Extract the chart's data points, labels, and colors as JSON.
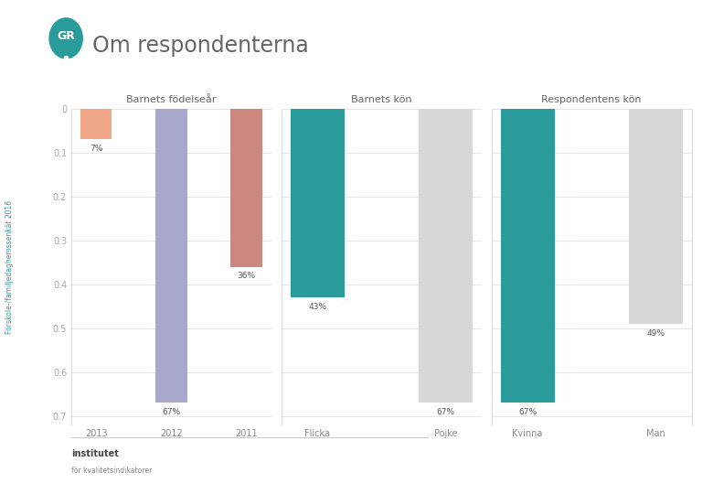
{
  "title": "Om respondenterna",
  "background_color": "#ffffff",
  "panels": [
    {
      "title": "Barnets födelseår",
      "categories": [
        "2013",
        "2012",
        "2011"
      ],
      "values": [
        0.07,
        0.67,
        0.36
      ],
      "colors": [
        "#f0a888",
        "#a8a8cc",
        "#cc8880"
      ],
      "labels": [
        "7%",
        "67%",
        "36%"
      ]
    },
    {
      "title": "Barnets kön",
      "categories": [
        "Flicka",
        "Pojke"
      ],
      "values": [
        0.43,
        0.67
      ],
      "colors": [
        "#2a9b9b",
        "#d8d8d8"
      ],
      "labels": [
        "43%",
        "67%"
      ]
    },
    {
      "title": "Respondentens kön",
      "categories": [
        "Kvinna",
        "Man"
      ],
      "values": [
        0.67,
        0.49
      ],
      "colors": [
        "#2a9b9b",
        "#d8d8d8"
      ],
      "labels": [
        "67%",
        "49%"
      ]
    }
  ],
  "yticks": [
    0.0,
    0.1,
    0.2,
    0.3,
    0.4,
    0.5,
    0.6,
    0.7
  ],
  "ymin": 0.0,
  "ymax": 0.72,
  "logo_color": "#2a9b9b",
  "title_color": "#666666",
  "tick_color": "#aaaaaa",
  "cat_label_color": "#888888",
  "panel_title_color": "#666666",
  "bar_label_color": "#555555",
  "rotated_label": "Förskole-/familjedaghemssenkät 2016",
  "rotated_label_color": "#2a9b9b",
  "grid_color": "#e0e0e0",
  "footer_line_color": "#cccccc"
}
